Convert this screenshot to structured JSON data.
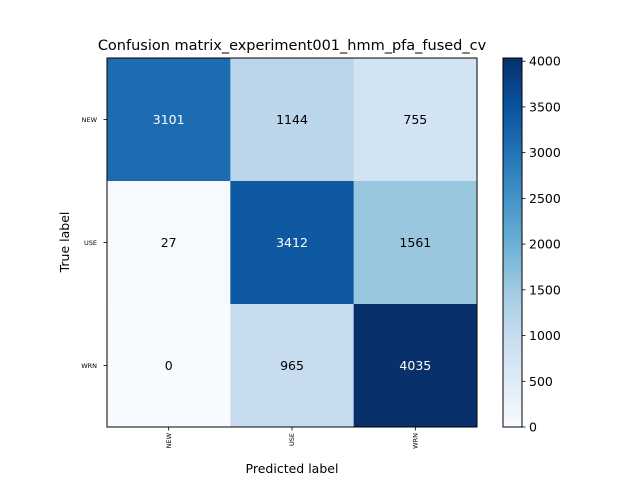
{
  "chart_data": {
    "type": "heatmap",
    "title": "Confusion matrix_experiment001_hmm_pfa_fused_cv",
    "xlabel": "Predicted label",
    "ylabel": "True label",
    "x_categories": [
      "NEW",
      "USE",
      "WRN"
    ],
    "y_categories": [
      "NEW",
      "USE",
      "WRN"
    ],
    "values": [
      [
        3101,
        1144,
        755
      ],
      [
        27,
        3412,
        1561
      ],
      [
        0,
        965,
        4035
      ]
    ],
    "colormap": "Blues",
    "colorbar": {
      "min": 0,
      "max": 4035,
      "ticks": [
        0,
        500,
        1000,
        1500,
        2000,
        2500,
        3000,
        3500,
        4000
      ]
    },
    "grid": false
  }
}
